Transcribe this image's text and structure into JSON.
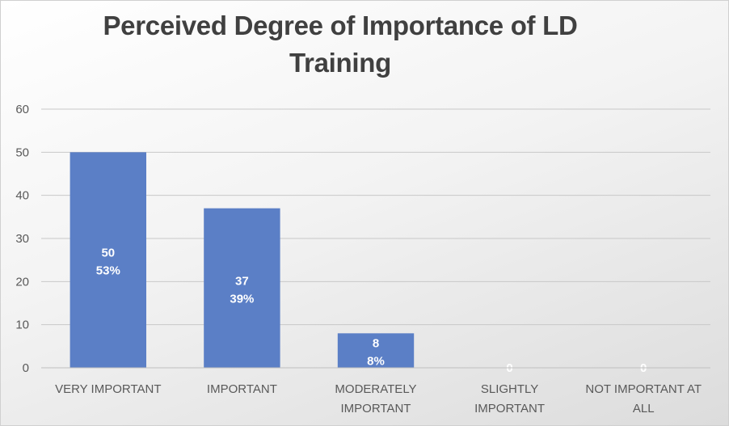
{
  "chart_data": {
    "type": "bar",
    "title": "Perceived Degree of Importance of LD Training",
    "categories": [
      [
        "VERY IMPORTANT"
      ],
      [
        "IMPORTANT"
      ],
      [
        "MODERATELY",
        "IMPORTANT"
      ],
      [
        "SLIGHTLY",
        "IMPORTANT"
      ],
      [
        "NOT IMPORTANT AT",
        "ALL"
      ]
    ],
    "values": [
      50,
      37,
      8,
      0,
      0
    ],
    "percent_labels": [
      "53%",
      "39%",
      "8%",
      "",
      ""
    ],
    "ylim": [
      0,
      60
    ],
    "yticks": [
      0,
      10,
      20,
      30,
      40,
      50,
      60
    ],
    "grid": true,
    "legend": "none",
    "bar_color": "#5b7fc6",
    "gridline_color": "#c8c8c8"
  }
}
